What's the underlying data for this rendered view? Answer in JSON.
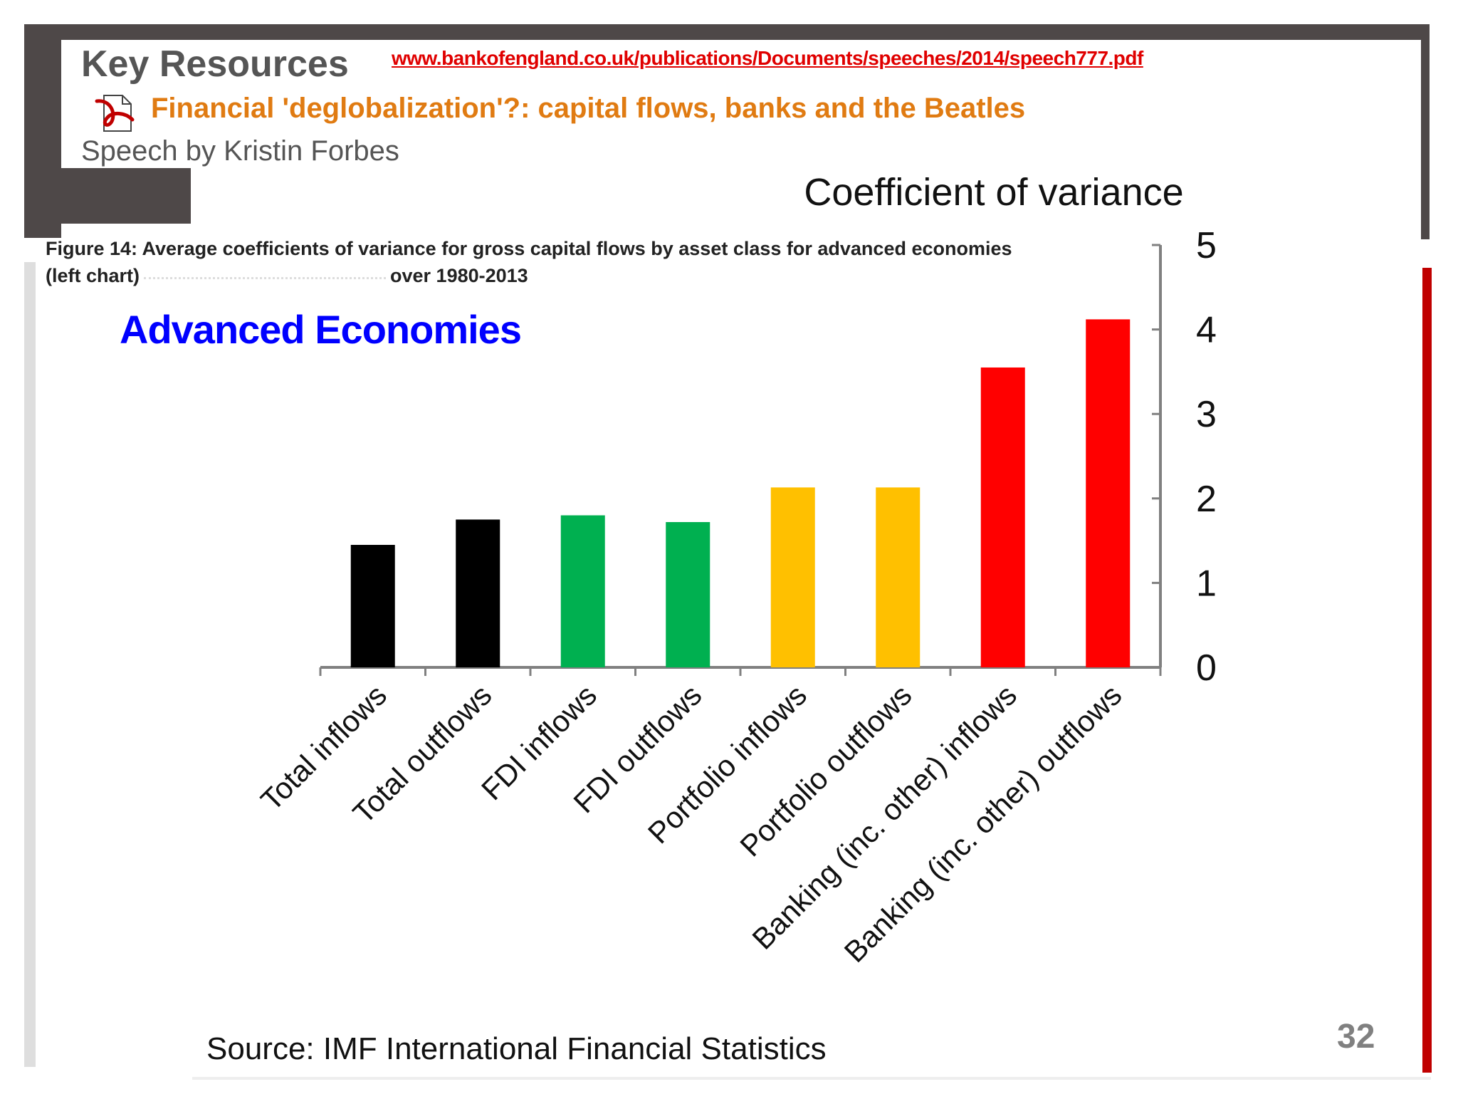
{
  "header": {
    "key_resources": "Key Resources",
    "url": "www.bankofengland.co.uk/publications/Documents/speeches/2014/speech777.pdf",
    "speech_title": "Financial 'deglobalization'?: capital flows, banks and the Beatles",
    "speech_author": "Speech by Kristin Forbes",
    "pdf_icon": "pdf-file-icon"
  },
  "figure": {
    "caption_line1": "Figure 14: Average coefficients of variance for gross capital flows by asset class for advanced economies",
    "caption_line2_start": "(left chart)",
    "caption_line2_end": "over 1980-2013",
    "panel_title": "Advanced Economies",
    "source": "Source: IMF International Financial Statistics"
  },
  "slide": {
    "number": "32"
  },
  "colors": {
    "frame": "#4e4848",
    "accent_red": "#c00000",
    "link_red": "#e00000",
    "title_orange": "#e07b12",
    "panel_title_blue": "#0000ff"
  },
  "chart_data": {
    "type": "bar",
    "title": "",
    "ylabel": "Coefficient  of variance",
    "xlabel": "",
    "ylim": [
      0,
      5
    ],
    "yticks": [
      0,
      1,
      2,
      3,
      4,
      5
    ],
    "y_axis_side": "right",
    "grid": false,
    "categories": [
      "Total inflows",
      "Total outflows",
      "FDI inflows",
      "FDI outflows",
      "Portfolio inflows",
      "Portfolio outflows",
      "Banking (inc. other) inflows",
      "Banking (inc. other) outflows"
    ],
    "values": [
      1.45,
      1.75,
      1.8,
      1.72,
      2.13,
      2.13,
      3.55,
      4.12
    ],
    "bar_colors": [
      "#000000",
      "#000000",
      "#00b050",
      "#00b050",
      "#ffc000",
      "#ffc000",
      "#ff0000",
      "#ff0000"
    ]
  }
}
